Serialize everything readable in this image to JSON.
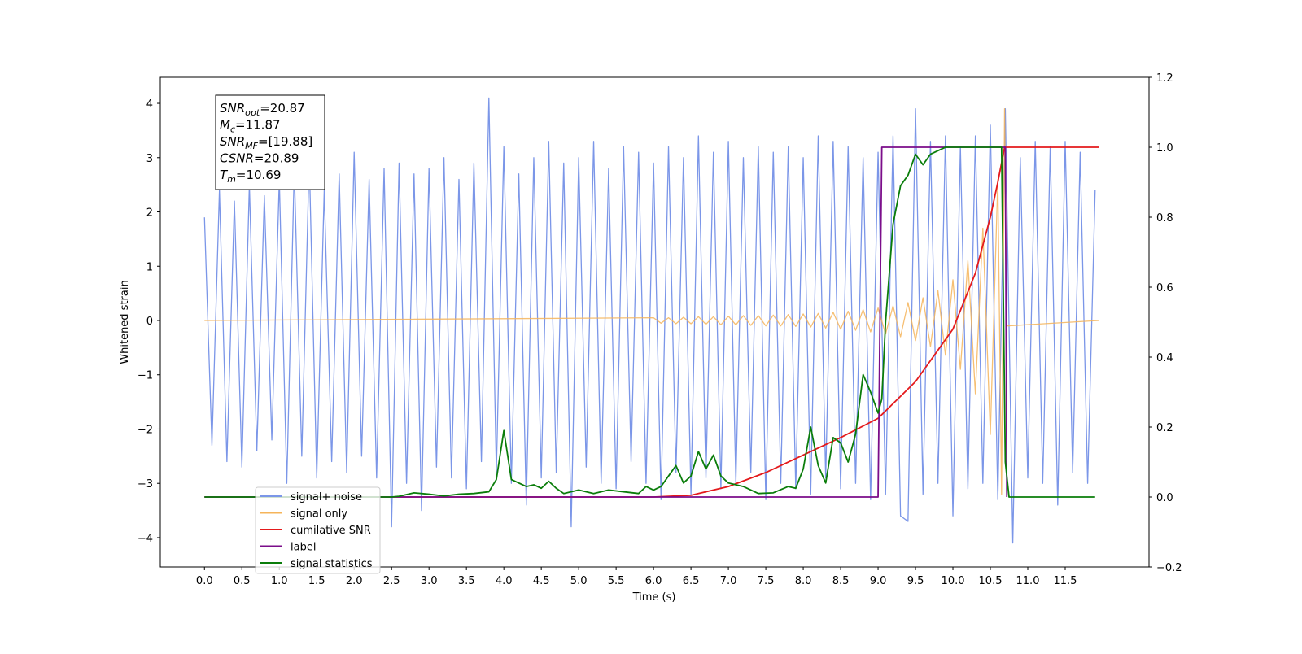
{
  "chart_data": {
    "type": "line",
    "xlabel": "Time (s)",
    "ylabel": "Whitened strain",
    "xlim": [
      -0.59,
      12.62
    ],
    "ylim": [
      -4.54,
      4.48
    ],
    "y2lim": [
      -0.2,
      1.2
    ],
    "xticks": [
      {
        "value": 0,
        "label": "0.0"
      },
      {
        "value": 0.5,
        "label": "0.5"
      },
      {
        "value": 1,
        "label": "1.0"
      },
      {
        "value": 1.5,
        "label": "1.5"
      },
      {
        "value": 2,
        "label": "2.0"
      },
      {
        "value": 2.5,
        "label": "2.5"
      },
      {
        "value": 3,
        "label": "3.0"
      },
      {
        "value": 3.5,
        "label": "3.5"
      },
      {
        "value": 4,
        "label": "4.0"
      },
      {
        "value": 4.5,
        "label": "4.5"
      },
      {
        "value": 5,
        "label": "5.0"
      },
      {
        "value": 5.5,
        "label": "5.5"
      },
      {
        "value": 6,
        "label": "6.0"
      },
      {
        "value": 6.5,
        "label": "6.5"
      },
      {
        "value": 7,
        "label": "7.0"
      },
      {
        "value": 7.5,
        "label": "7.5"
      },
      {
        "value": 8,
        "label": "8.0"
      },
      {
        "value": 8.5,
        "label": "8.5"
      },
      {
        "value": 9,
        "label": "9.0"
      },
      {
        "value": 9.5,
        "label": "9.5"
      },
      {
        "value": 10,
        "label": "10.0"
      },
      {
        "value": 10.5,
        "label": "10.5"
      },
      {
        "value": 11,
        "label": "11.0"
      },
      {
        "value": 11.5,
        "label": "11.5"
      }
    ],
    "yticks": [
      {
        "value": -4,
        "label": "−4"
      },
      {
        "value": -3,
        "label": "−3"
      },
      {
        "value": -2,
        "label": "−2"
      },
      {
        "value": -1,
        "label": "−1"
      },
      0,
      1,
      2,
      3,
      4
    ],
    "y2ticks": [
      {
        "value": -0.2,
        "label": "−0.2"
      },
      {
        "value": 0,
        "label": "0.0"
      },
      {
        "value": 0.2,
        "label": "0.2"
      },
      {
        "value": 0.4,
        "label": "0.4"
      },
      {
        "value": 0.6,
        "label": "0.6"
      },
      {
        "value": 0.8,
        "label": "0.8"
      },
      {
        "value": 1,
        "label": "1.0"
      },
      {
        "value": 1.2,
        "label": "1.2"
      }
    ],
    "legend": "lower left",
    "annotation": [
      {
        "name": "SNR",
        "sub": "opt",
        "text": "=20.87"
      },
      {
        "name": "M",
        "sub": "c",
        "text": "=11.87"
      },
      {
        "name": "SNR",
        "sub": "MF",
        "text": "=[19.88]"
      },
      {
        "name": "CSNR",
        "sub": "",
        "text": "=20.89"
      },
      {
        "name": "T",
        "sub": "m",
        "text": "=10.69"
      }
    ],
    "series": [
      {
        "name": "signal+ noise",
        "color": "#7b96e8",
        "x": [
          0,
          0.1,
          0.2,
          0.3,
          0.4,
          0.5,
          0.6,
          0.7,
          0.8,
          0.9,
          1,
          1.1,
          1.2,
          1.3,
          1.4,
          1.5,
          1.6,
          1.7,
          1.8,
          1.9,
          2,
          2.1,
          2.2,
          2.3,
          2.4,
          2.5,
          2.6,
          2.7,
          2.8,
          2.9,
          3,
          3.1,
          3.2,
          3.3,
          3.4,
          3.5,
          3.6,
          3.7,
          3.8,
          3.9,
          4,
          4.1,
          4.2,
          4.3,
          4.4,
          4.5,
          4.6,
          4.7,
          4.8,
          4.9,
          5,
          5.1,
          5.2,
          5.3,
          5.4,
          5.5,
          5.6,
          5.7,
          5.8,
          5.9,
          6,
          6.1,
          6.2,
          6.3,
          6.4,
          6.5,
          6.6,
          6.7,
          6.8,
          6.9,
          7,
          7.1,
          7.2,
          7.3,
          7.4,
          7.5,
          7.6,
          7.7,
          7.8,
          7.9,
          8,
          8.1,
          8.2,
          8.3,
          8.4,
          8.5,
          8.6,
          8.7,
          8.8,
          8.9,
          9,
          9.1,
          9.2,
          9.3,
          9.4,
          9.5,
          9.6,
          9.7,
          9.8,
          9.9,
          10,
          10.1,
          10.2,
          10.3,
          10.4,
          10.5,
          10.6,
          10.7,
          10.8,
          10.9,
          11,
          11.1,
          11.2,
          11.3,
          11.4,
          11.5,
          11.6,
          11.7,
          11.8,
          11.9
        ],
        "values": [
          1.9,
          -2.3,
          2.4,
          -2.6,
          2.2,
          -2.7,
          2.5,
          -2.4,
          2.3,
          -2.2,
          2.6,
          -3.0,
          2.8,
          -2.5,
          3.0,
          -2.9,
          2.4,
          -2.6,
          2.7,
          -2.8,
          3.1,
          -2.5,
          2.6,
          -2.9,
          2.8,
          -3.8,
          2.9,
          -3.0,
          2.7,
          -3.5,
          2.8,
          -2.7,
          3.0,
          -2.9,
          2.6,
          -3.1,
          2.9,
          -2.6,
          4.1,
          -2.8,
          3.2,
          -3.0,
          2.7,
          -3.4,
          3.0,
          -2.9,
          3.3,
          -2.8,
          2.9,
          -3.8,
          3.0,
          -2.7,
          3.3,
          -3.0,
          2.8,
          -3.1,
          3.2,
          -2.6,
          3.1,
          -3.0,
          2.9,
          -3.3,
          3.2,
          -2.8,
          3.0,
          -3.2,
          3.4,
          -2.9,
          3.1,
          -3.1,
          3.3,
          -3.0,
          3.0,
          -2.8,
          3.2,
          -3.3,
          3.1,
          -3.0,
          3.2,
          -3.1,
          3.0,
          -3.2,
          3.4,
          -2.9,
          3.3,
          -3.1,
          3.2,
          -3.0,
          3.0,
          -3.3,
          3.1,
          -3.2,
          3.4,
          -3.6,
          -3.7,
          3.9,
          -3.2,
          3.3,
          -3.0,
          3.4,
          -3.6,
          3.2,
          -3.1,
          3.4,
          -3.0,
          3.6,
          -3.3,
          3.9,
          -4.1,
          3.0,
          -2.9,
          3.3,
          -3.0,
          3.2,
          -3.4,
          3.3,
          -2.8,
          3.1,
          -3.0,
          2.4
        ]
      },
      {
        "name": "signal only",
        "color": "#f5b45a",
        "x": [
          0,
          6,
          6.1,
          6.2,
          6.3,
          6.4,
          6.5,
          6.6,
          6.7,
          6.8,
          6.9,
          7,
          7.1,
          7.2,
          7.3,
          7.4,
          7.5,
          7.6,
          7.7,
          7.8,
          7.9,
          8,
          8.1,
          8.2,
          8.3,
          8.4,
          8.5,
          8.6,
          8.7,
          8.8,
          8.9,
          9,
          9.1,
          9.2,
          9.3,
          9.4,
          9.5,
          9.6,
          9.7,
          9.8,
          9.9,
          10,
          10.1,
          10.2,
          10.3,
          10.4,
          10.5,
          10.6,
          10.65,
          10.69,
          10.72,
          11.95
        ],
        "values": [
          0,
          0.05,
          -0.05,
          0.05,
          -0.06,
          0.06,
          -0.06,
          0.07,
          -0.07,
          0.07,
          -0.08,
          0.08,
          -0.08,
          0.09,
          -0.09,
          0.09,
          -0.1,
          0.1,
          -0.1,
          0.11,
          -0.11,
          0.12,
          -0.12,
          0.13,
          -0.14,
          0.15,
          -0.16,
          0.17,
          -0.18,
          0.2,
          -0.21,
          0.23,
          -0.25,
          0.27,
          -0.3,
          0.33,
          -0.37,
          0.42,
          -0.48,
          0.55,
          -0.64,
          0.75,
          -0.9,
          1.1,
          -1.35,
          1.7,
          -2.1,
          2.6,
          -3.2,
          3.9,
          -0.1,
          0
        ]
      },
      {
        "name": "cumilative SNR",
        "color": "#e41a1c",
        "axis": "y2",
        "x": [
          0,
          6,
          6.5,
          7,
          7.5,
          8,
          8.5,
          9,
          9.5,
          10,
          10.3,
          10.5,
          10.6,
          10.69,
          11.95
        ],
        "values": [
          0,
          0,
          0.005,
          0.03,
          0.07,
          0.12,
          0.17,
          0.225,
          0.33,
          0.48,
          0.64,
          0.8,
          0.9,
          1,
          1
        ]
      },
      {
        "name": "label",
        "color": "#7b0d8a",
        "axis": "y2",
        "x": [
          0,
          9,
          9.05,
          10.7,
          10.72
        ],
        "values": [
          0,
          0,
          1,
          1,
          0
        ]
      },
      {
        "name": "signal statistics",
        "color": "#0a7d0a",
        "axis": "y2",
        "x": [
          0,
          2.5,
          2.6,
          2.8,
          3,
          3.2,
          3.4,
          3.6,
          3.8,
          3.9,
          4,
          4.1,
          4.3,
          4.4,
          4.5,
          4.6,
          4.7,
          4.8,
          5,
          5.2,
          5.4,
          5.6,
          5.8,
          5.9,
          6,
          6.1,
          6.2,
          6.3,
          6.4,
          6.5,
          6.6,
          6.7,
          6.8,
          6.9,
          7,
          7.2,
          7.4,
          7.6,
          7.8,
          7.9,
          8,
          8.1,
          8.2,
          8.3,
          8.4,
          8.5,
          8.6,
          8.7,
          8.8,
          8.9,
          9,
          9.05,
          9.1,
          9.2,
          9.3,
          9.4,
          9.5,
          9.6,
          9.7,
          9.9,
          10.6,
          10.65,
          10.7,
          10.75,
          11.9
        ],
        "values": [
          0,
          0,
          0.002,
          0.012,
          0.008,
          0.003,
          0.008,
          0.01,
          0.015,
          0.05,
          0.19,
          0.05,
          0.03,
          0.035,
          0.025,
          0.045,
          0.025,
          0.01,
          0.02,
          0.01,
          0.02,
          0.015,
          0.01,
          0.03,
          0.02,
          0.03,
          0.06,
          0.09,
          0.04,
          0.06,
          0.13,
          0.08,
          0.12,
          0.06,
          0.04,
          0.03,
          0.01,
          0.012,
          0.03,
          0.025,
          0.08,
          0.2,
          0.09,
          0.04,
          0.17,
          0.155,
          0.1,
          0.18,
          0.35,
          0.3,
          0.24,
          0.28,
          0.5,
          0.78,
          0.89,
          0.92,
          0.98,
          0.95,
          0.98,
          1,
          1,
          1,
          0.1,
          0,
          0
        ]
      }
    ]
  }
}
